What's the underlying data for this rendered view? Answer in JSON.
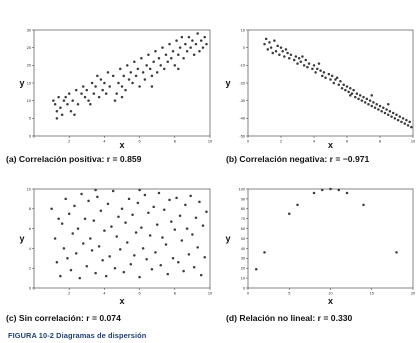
{
  "figure_title": "FIGURA 10-2   Diagramas de dispersión",
  "chart_data": [
    {
      "type": "scatter",
      "caption": "(a) Correlación positiva: r = 0.859",
      "xlabel": "x",
      "ylabel": "y",
      "xlim": [
        0,
        10
      ],
      "ylim": [
        0,
        30
      ],
      "xticks": [
        0,
        2,
        4,
        6,
        8,
        10
      ],
      "yticks": [
        0,
        5,
        10,
        15,
        20,
        25,
        30
      ],
      "xtick_labels": [
        "",
        "2",
        "4",
        "6",
        "8",
        "10"
      ],
      "ytick_labels": [
        "0",
        "5",
        "10",
        "15",
        "20",
        "25",
        "30"
      ],
      "points": [
        [
          1.1,
          10
        ],
        [
          1.2,
          9
        ],
        [
          1.3,
          7
        ],
        [
          1.3,
          5
        ],
        [
          1.4,
          11
        ],
        [
          1.5,
          8
        ],
        [
          1.6,
          6
        ],
        [
          1.7,
          10
        ],
        [
          1.8,
          11
        ],
        [
          1.9,
          9
        ],
        [
          2.0,
          12
        ],
        [
          2.1,
          7
        ],
        [
          2.2,
          10
        ],
        [
          2.4,
          13
        ],
        [
          2.5,
          9
        ],
        [
          2.7,
          12
        ],
        [
          2.8,
          14
        ],
        [
          2.9,
          11
        ],
        [
          3.0,
          13
        ],
        [
          3.1,
          10
        ],
        [
          3.3,
          15
        ],
        [
          3.4,
          12
        ],
        [
          3.5,
          14
        ],
        [
          3.6,
          17
        ],
        [
          3.7,
          11
        ],
        [
          3.8,
          16
        ],
        [
          3.9,
          13
        ],
        [
          4.0,
          15
        ],
        [
          4.1,
          12
        ],
        [
          4.2,
          18
        ],
        [
          4.3,
          14
        ],
        [
          4.5,
          17
        ],
        [
          4.6,
          10
        ],
        [
          4.7,
          12
        ],
        [
          4.8,
          15
        ],
        [
          4.9,
          19
        ],
        [
          5.0,
          14
        ],
        [
          5.1,
          17
        ],
        [
          5.2,
          13
        ],
        [
          5.3,
          20
        ],
        [
          5.4,
          16
        ],
        [
          5.5,
          18
        ],
        [
          5.6,
          15
        ],
        [
          5.7,
          21
        ],
        [
          5.8,
          17
        ],
        [
          5.9,
          19
        ],
        [
          6.0,
          14
        ],
        [
          6.1,
          22
        ],
        [
          6.2,
          18
        ],
        [
          6.3,
          16
        ],
        [
          6.4,
          20
        ],
        [
          6.5,
          23
        ],
        [
          6.6,
          19
        ],
        [
          6.7,
          17
        ],
        [
          6.8,
          21
        ],
        [
          6.9,
          24
        ],
        [
          7.0,
          18
        ],
        [
          7.1,
          22
        ],
        [
          7.2,
          20
        ],
        [
          7.3,
          25
        ],
        [
          7.4,
          19
        ],
        [
          7.5,
          23
        ],
        [
          7.6,
          21
        ],
        [
          7.7,
          26
        ],
        [
          7.8,
          22
        ],
        [
          7.9,
          24
        ],
        [
          8.0,
          20
        ],
        [
          8.1,
          27
        ],
        [
          8.2,
          23
        ],
        [
          8.3,
          25
        ],
        [
          8.4,
          28
        ],
        [
          8.5,
          22
        ],
        [
          8.6,
          26
        ],
        [
          8.7,
          24
        ],
        [
          8.8,
          28
        ],
        [
          8.9,
          25
        ],
        [
          9.0,
          27
        ],
        [
          9.1,
          23
        ],
        [
          9.2,
          26
        ],
        [
          9.3,
          29
        ],
        [
          9.4,
          24
        ],
        [
          9.5,
          27
        ],
        [
          9.6,
          25
        ],
        [
          9.7,
          28
        ],
        [
          9.8,
          26
        ],
        [
          5.0,
          11
        ],
        [
          3.2,
          9
        ],
        [
          2.3,
          6
        ],
        [
          6.7,
          14
        ],
        [
          8.2,
          19
        ]
      ]
    },
    {
      "type": "scatter",
      "caption": "(b) Correlación negativa: r = −0.971",
      "xlabel": "x",
      "ylabel": "y",
      "xlim": [
        0,
        10
      ],
      "ylim": [
        -50,
        10
      ],
      "xticks": [
        0,
        2,
        4,
        6,
        8,
        10
      ],
      "yticks": [
        -50,
        -40,
        -30,
        -20,
        -10,
        0,
        10
      ],
      "xtick_labels": [
        "0",
        "2",
        "4",
        "6",
        "8",
        "10"
      ],
      "ytick_labels": [
        "-50",
        "-40",
        "-30",
        "-20",
        "-10",
        "0",
        "10"
      ],
      "points": [
        [
          1.0,
          2
        ],
        [
          1.1,
          5
        ],
        [
          1.2,
          -1
        ],
        [
          1.3,
          3
        ],
        [
          1.4,
          0
        ],
        [
          1.5,
          -3
        ],
        [
          1.6,
          4
        ],
        [
          1.7,
          -2
        ],
        [
          1.8,
          1
        ],
        [
          1.9,
          -4
        ],
        [
          2.0,
          0
        ],
        [
          2.1,
          -2
        ],
        [
          2.2,
          -5
        ],
        [
          2.3,
          -1
        ],
        [
          2.4,
          -3
        ],
        [
          2.5,
          -6
        ],
        [
          2.6,
          -4
        ],
        [
          2.8,
          -7
        ],
        [
          2.9,
          -5
        ],
        [
          3.0,
          -9
        ],
        [
          3.1,
          -6
        ],
        [
          3.2,
          -8
        ],
        [
          3.4,
          -10
        ],
        [
          3.5,
          -7
        ],
        [
          3.6,
          -11
        ],
        [
          3.7,
          -9
        ],
        [
          3.9,
          -12
        ],
        [
          4.0,
          -10
        ],
        [
          4.1,
          -14
        ],
        [
          4.2,
          -12
        ],
        [
          4.4,
          -13
        ],
        [
          4.5,
          -16
        ],
        [
          4.6,
          -14
        ],
        [
          4.7,
          -17
        ],
        [
          4.9,
          -15
        ],
        [
          5.0,
          -18
        ],
        [
          5.1,
          -16
        ],
        [
          5.2,
          -20
        ],
        [
          5.3,
          -18
        ],
        [
          5.5,
          -21
        ],
        [
          5.6,
          -19
        ],
        [
          5.7,
          -23
        ],
        [
          5.8,
          -21
        ],
        [
          5.9,
          -24
        ],
        [
          6.0,
          -22
        ],
        [
          6.1,
          -25
        ],
        [
          6.2,
          -23
        ],
        [
          6.3,
          -26
        ],
        [
          6.4,
          -24
        ],
        [
          6.5,
          -28
        ],
        [
          6.6,
          -26
        ],
        [
          6.7,
          -29
        ],
        [
          6.8,
          -27
        ],
        [
          6.9,
          -30
        ],
        [
          7.0,
          -28
        ],
        [
          7.1,
          -31
        ],
        [
          7.2,
          -29
        ],
        [
          7.3,
          -32
        ],
        [
          7.4,
          -30
        ],
        [
          7.5,
          -33
        ],
        [
          7.6,
          -31
        ],
        [
          7.7,
          -34
        ],
        [
          7.8,
          -32
        ],
        [
          7.9,
          -35
        ],
        [
          8.0,
          -33
        ],
        [
          8.1,
          -36
        ],
        [
          8.2,
          -34
        ],
        [
          8.3,
          -37
        ],
        [
          8.4,
          -35
        ],
        [
          8.5,
          -38
        ],
        [
          8.6,
          -36
        ],
        [
          8.7,
          -39
        ],
        [
          8.8,
          -37
        ],
        [
          8.9,
          -40
        ],
        [
          9.0,
          -38
        ],
        [
          9.1,
          -41
        ],
        [
          9.2,
          -39
        ],
        [
          9.3,
          -42
        ],
        [
          9.4,
          -40
        ],
        [
          9.5,
          -43
        ],
        [
          9.6,
          -41
        ],
        [
          9.7,
          -44
        ],
        [
          9.8,
          -42
        ],
        [
          9.9,
          -45
        ],
        [
          3.3,
          -5
        ],
        [
          5.4,
          -17
        ],
        [
          7.5,
          -27
        ],
        [
          6.2,
          -27
        ],
        [
          4.3,
          -9
        ],
        [
          8.5,
          -32
        ]
      ]
    },
    {
      "type": "scatter",
      "caption": "(c) Sin correlación: r = 0.074",
      "xlabel": "x",
      "ylabel": "y",
      "xlim": [
        0,
        10
      ],
      "ylim": [
        0,
        10
      ],
      "xticks": [
        0,
        2,
        4,
        6,
        8,
        10
      ],
      "yticks": [
        0,
        2,
        4,
        6,
        8,
        10
      ],
      "xtick_labels": [
        "",
        "2",
        "4",
        "6",
        "8",
        "10"
      ],
      "ytick_labels": [
        "0",
        "2",
        "4",
        "6",
        "8",
        "10"
      ],
      "points": [
        [
          1.0,
          8
        ],
        [
          1.2,
          5
        ],
        [
          1.3,
          2.6
        ],
        [
          1.4,
          7
        ],
        [
          1.5,
          1.2
        ],
        [
          1.6,
          6.5
        ],
        [
          1.7,
          4
        ],
        [
          1.8,
          9
        ],
        [
          1.9,
          3
        ],
        [
          2.0,
          7.5
        ],
        [
          2.1,
          1.8
        ],
        [
          2.2,
          5.5
        ],
        [
          2.3,
          8.3
        ],
        [
          2.4,
          3.5
        ],
        [
          2.5,
          6
        ],
        [
          2.6,
          1
        ],
        [
          2.7,
          9.5
        ],
        [
          2.8,
          4.5
        ],
        [
          2.9,
          7
        ],
        [
          3.0,
          2.2
        ],
        [
          3.1,
          8.8
        ],
        [
          3.2,
          5
        ],
        [
          3.3,
          3.8
        ],
        [
          3.4,
          6.8
        ],
        [
          3.5,
          1.5
        ],
        [
          3.6,
          9.2
        ],
        [
          3.7,
          4.2
        ],
        [
          3.8,
          7.8
        ],
        [
          3.9,
          2.8
        ],
        [
          4.0,
          5.8
        ],
        [
          4.1,
          1.2
        ],
        [
          4.2,
          8.5
        ],
        [
          4.3,
          3.2
        ],
        [
          4.4,
          6.2
        ],
        [
          4.5,
          9.8
        ],
        [
          4.6,
          2
        ],
        [
          4.7,
          5.2
        ],
        [
          4.8,
          7.2
        ],
        [
          4.9,
          3.9
        ],
        [
          5.0,
          8
        ],
        [
          5.1,
          1.6
        ],
        [
          5.2,
          6.6
        ],
        [
          5.3,
          4.6
        ],
        [
          5.4,
          9
        ],
        [
          5.5,
          2.4
        ],
        [
          5.6,
          7.4
        ],
        [
          5.7,
          3.3
        ],
        [
          5.8,
          5.6
        ],
        [
          5.9,
          8.6
        ],
        [
          6.0,
          1.1
        ],
        [
          6.1,
          6.1
        ],
        [
          6.2,
          4
        ],
        [
          6.3,
          9.4
        ],
        [
          6.4,
          2.9
        ],
        [
          6.5,
          7.6
        ],
        [
          6.6,
          5.3
        ],
        [
          6.7,
          1.9
        ],
        [
          6.8,
          8.2
        ],
        [
          6.9,
          3.6
        ],
        [
          7.0,
          6.4
        ],
        [
          7.1,
          9.6
        ],
        [
          7.2,
          2.3
        ],
        [
          7.3,
          5.1
        ],
        [
          7.4,
          7.9
        ],
        [
          7.5,
          4.4
        ],
        [
          7.6,
          1.4
        ],
        [
          7.7,
          8.9
        ],
        [
          7.8,
          6.7
        ],
        [
          7.9,
          3
        ],
        [
          8.0,
          5.9
        ],
        [
          8.1,
          9.1
        ],
        [
          8.2,
          2.6
        ],
        [
          8.3,
          7.3
        ],
        [
          8.4,
          4.8
        ],
        [
          8.5,
          1.7
        ],
        [
          8.6,
          8.4
        ],
        [
          8.7,
          6
        ],
        [
          8.8,
          3.4
        ],
        [
          8.9,
          9.3
        ],
        [
          9.0,
          5.4
        ],
        [
          9.1,
          2.1
        ],
        [
          9.2,
          7.1
        ],
        [
          9.3,
          4.1
        ],
        [
          9.4,
          8.7
        ],
        [
          9.5,
          1.3
        ],
        [
          9.6,
          6.3
        ],
        [
          9.7,
          3.1
        ],
        [
          9.8,
          7.7
        ],
        [
          3.5,
          9.9
        ],
        [
          6.0,
          9.9
        ]
      ]
    },
    {
      "type": "scatter",
      "caption": "(d) Relación no lineal: r = 0.330",
      "xlabel": "x",
      "ylabel": "y",
      "xlim": [
        0,
        20
      ],
      "ylim": [
        0,
        100
      ],
      "xticks": [
        0,
        5,
        10,
        15,
        20
      ],
      "yticks": [
        0,
        10,
        20,
        30,
        40,
        50,
        60,
        70,
        80,
        90,
        100
      ],
      "xtick_labels": [
        "0",
        "5",
        "10",
        "15",
        "20"
      ],
      "ytick_labels": [
        "0",
        "10",
        "20",
        "30",
        "40",
        "50",
        "60",
        "70",
        "80",
        "90",
        "100"
      ],
      "points": [
        [
          1,
          19
        ],
        [
          2,
          36
        ],
        [
          5,
          75
        ],
        [
          6,
          84
        ],
        [
          8,
          96
        ],
        [
          9,
          99
        ],
        [
          10,
          100
        ],
        [
          11,
          99
        ],
        [
          12,
          96
        ],
        [
          14,
          84
        ],
        [
          18,
          36
        ]
      ]
    }
  ]
}
